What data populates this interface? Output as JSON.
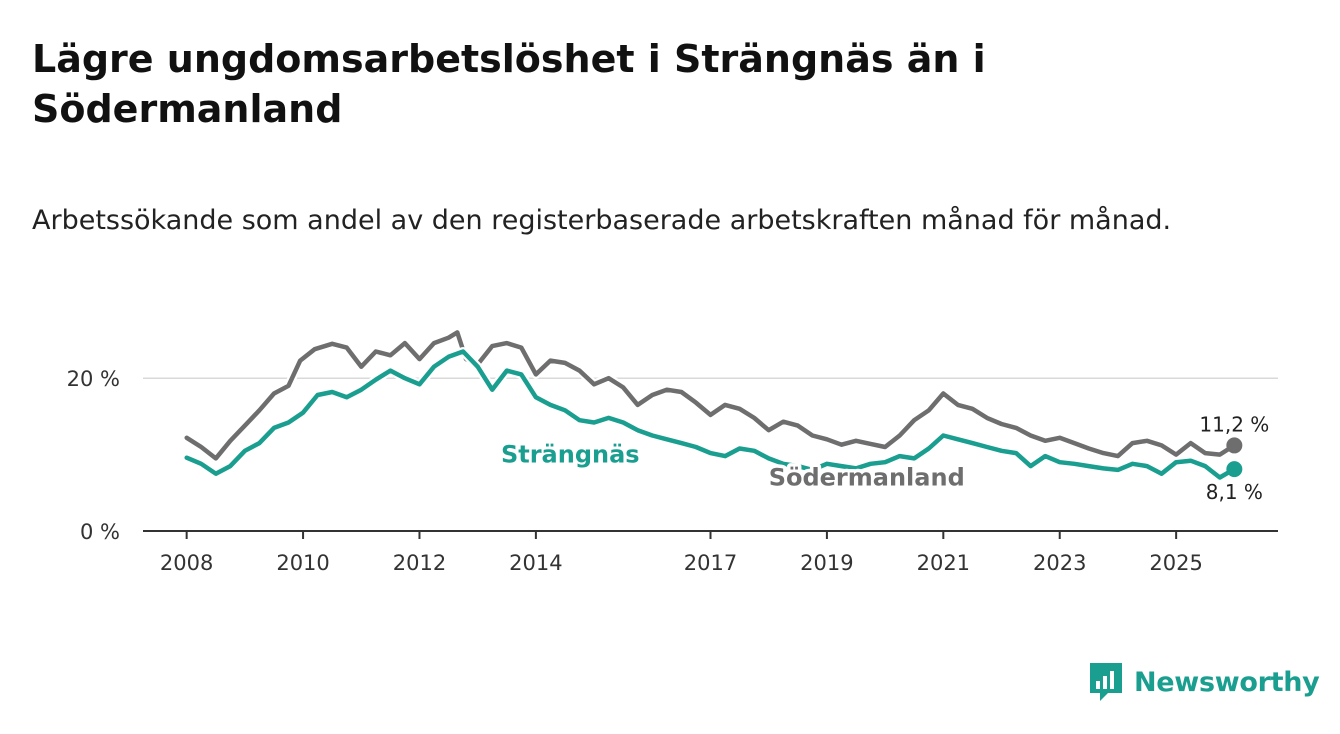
{
  "title": "Lägre ungdomsarbetslöshet i Strängnäs än i Södermanland",
  "subtitle": "Arbetssökande som andel av den registerbaserade arbetskraften månad för månad.",
  "brand": {
    "name": "Newsworthy",
    "icon": "newsworthy-logo-icon",
    "color": "#1a9e8f"
  },
  "chart_data": {
    "type": "line",
    "title": "Lägre ungdomsarbetslöshet i Strängnäs än i Södermanland",
    "xlabel": "",
    "ylabel": "",
    "x_range": [
      2007.25,
      2026.75
    ],
    "ylim": [
      0,
      25
    ],
    "y_ticks": [
      0,
      20
    ],
    "y_tick_labels": [
      "0 %",
      "20 %"
    ],
    "x_ticks": [
      2008,
      2010,
      2012,
      2014,
      2017,
      2019,
      2021,
      2023,
      2025
    ],
    "x_tick_labels": [
      "2008",
      "2010",
      "2012",
      "2014",
      "2017",
      "2019",
      "2021",
      "2023",
      "2025"
    ],
    "grid": "horizontal",
    "series": [
      {
        "name": "Södermanland",
        "color": "#6e6e6e",
        "end_label": "11,2 %",
        "points": [
          [
            2008.0,
            12.2
          ],
          [
            2008.25,
            11.0
          ],
          [
            2008.5,
            9.5
          ],
          [
            2008.75,
            11.8
          ],
          [
            2009.0,
            13.8
          ],
          [
            2009.25,
            15.8
          ],
          [
            2009.5,
            18.0
          ],
          [
            2009.75,
            19.0
          ],
          [
            2009.95,
            22.3
          ],
          [
            2010.2,
            23.8
          ],
          [
            2010.5,
            24.5
          ],
          [
            2010.75,
            24.0
          ],
          [
            2011.0,
            21.5
          ],
          [
            2011.25,
            23.5
          ],
          [
            2011.5,
            23.0
          ],
          [
            2011.75,
            24.6
          ],
          [
            2012.0,
            22.5
          ],
          [
            2012.25,
            24.6
          ],
          [
            2012.5,
            25.3
          ],
          [
            2012.65,
            26.0
          ],
          [
            2012.8,
            22.5
          ],
          [
            2013.0,
            21.8
          ],
          [
            2013.25,
            24.2
          ],
          [
            2013.5,
            24.6
          ],
          [
            2013.75,
            24.0
          ],
          [
            2014.0,
            20.5
          ],
          [
            2014.25,
            22.3
          ],
          [
            2014.5,
            22.0
          ],
          [
            2014.75,
            21.0
          ],
          [
            2015.0,
            19.2
          ],
          [
            2015.25,
            20.0
          ],
          [
            2015.5,
            18.8
          ],
          [
            2015.75,
            16.5
          ],
          [
            2016.0,
            17.8
          ],
          [
            2016.25,
            18.5
          ],
          [
            2016.5,
            18.2
          ],
          [
            2016.75,
            16.8
          ],
          [
            2017.0,
            15.2
          ],
          [
            2017.25,
            16.5
          ],
          [
            2017.5,
            16.0
          ],
          [
            2017.75,
            14.8
          ],
          [
            2018.0,
            13.2
          ],
          [
            2018.25,
            14.3
          ],
          [
            2018.5,
            13.8
          ],
          [
            2018.75,
            12.5
          ],
          [
            2019.0,
            12.0
          ],
          [
            2019.25,
            11.3
          ],
          [
            2019.5,
            11.8
          ],
          [
            2019.75,
            11.4
          ],
          [
            2020.0,
            11.0
          ],
          [
            2020.25,
            12.5
          ],
          [
            2020.5,
            14.5
          ],
          [
            2020.75,
            15.8
          ],
          [
            2021.0,
            18.0
          ],
          [
            2021.25,
            16.5
          ],
          [
            2021.5,
            16.0
          ],
          [
            2021.75,
            14.8
          ],
          [
            2022.0,
            14.0
          ],
          [
            2022.25,
            13.5
          ],
          [
            2022.5,
            12.5
          ],
          [
            2022.75,
            11.8
          ],
          [
            2023.0,
            12.2
          ],
          [
            2023.25,
            11.5
          ],
          [
            2023.5,
            10.8
          ],
          [
            2023.75,
            10.2
          ],
          [
            2024.0,
            9.8
          ],
          [
            2024.25,
            11.5
          ],
          [
            2024.5,
            11.8
          ],
          [
            2024.75,
            11.2
          ],
          [
            2025.0,
            10.0
          ],
          [
            2025.25,
            11.5
          ],
          [
            2025.5,
            10.2
          ],
          [
            2025.75,
            10.0
          ],
          [
            2026.0,
            11.2
          ]
        ]
      },
      {
        "name": "Strängnäs",
        "color": "#1a9e8f",
        "end_label": "8,1 %",
        "points": [
          [
            2008.0,
            9.6
          ],
          [
            2008.25,
            8.8
          ],
          [
            2008.5,
            7.5
          ],
          [
            2008.75,
            8.5
          ],
          [
            2009.0,
            10.5
          ],
          [
            2009.25,
            11.5
          ],
          [
            2009.5,
            13.5
          ],
          [
            2009.75,
            14.2
          ],
          [
            2010.0,
            15.5
          ],
          [
            2010.25,
            17.8
          ],
          [
            2010.5,
            18.2
          ],
          [
            2010.75,
            17.5
          ],
          [
            2011.0,
            18.5
          ],
          [
            2011.25,
            19.8
          ],
          [
            2011.5,
            21.0
          ],
          [
            2011.75,
            20.0
          ],
          [
            2012.0,
            19.2
          ],
          [
            2012.25,
            21.5
          ],
          [
            2012.5,
            22.8
          ],
          [
            2012.75,
            23.5
          ],
          [
            2013.0,
            21.5
          ],
          [
            2013.25,
            18.5
          ],
          [
            2013.5,
            21.0
          ],
          [
            2013.75,
            20.5
          ],
          [
            2014.0,
            17.5
          ],
          [
            2014.25,
            16.5
          ],
          [
            2014.5,
            15.8
          ],
          [
            2014.75,
            14.5
          ],
          [
            2015.0,
            14.2
          ],
          [
            2015.25,
            14.8
          ],
          [
            2015.5,
            14.2
          ],
          [
            2015.75,
            13.2
          ],
          [
            2016.0,
            12.5
          ],
          [
            2016.25,
            12.0
          ],
          [
            2016.5,
            11.5
          ],
          [
            2016.75,
            11.0
          ],
          [
            2017.0,
            10.2
          ],
          [
            2017.25,
            9.8
          ],
          [
            2017.5,
            10.8
          ],
          [
            2017.75,
            10.5
          ],
          [
            2018.0,
            9.5
          ],
          [
            2018.25,
            8.8
          ],
          [
            2018.5,
            8.5
          ],
          [
            2018.75,
            8.0
          ],
          [
            2019.0,
            8.8
          ],
          [
            2019.25,
            8.5
          ],
          [
            2019.5,
            8.2
          ],
          [
            2019.75,
            8.8
          ],
          [
            2020.0,
            9.0
          ],
          [
            2020.25,
            9.8
          ],
          [
            2020.5,
            9.5
          ],
          [
            2020.75,
            10.8
          ],
          [
            2021.0,
            12.5
          ],
          [
            2021.25,
            12.0
          ],
          [
            2021.5,
            11.5
          ],
          [
            2021.75,
            11.0
          ],
          [
            2022.0,
            10.5
          ],
          [
            2022.25,
            10.2
          ],
          [
            2022.5,
            8.5
          ],
          [
            2022.75,
            9.8
          ],
          [
            2023.0,
            9.0
          ],
          [
            2023.25,
            8.8
          ],
          [
            2023.5,
            8.5
          ],
          [
            2023.75,
            8.2
          ],
          [
            2024.0,
            8.0
          ],
          [
            2024.25,
            8.8
          ],
          [
            2024.5,
            8.5
          ],
          [
            2024.75,
            7.5
          ],
          [
            2025.0,
            9.0
          ],
          [
            2025.25,
            9.2
          ],
          [
            2025.5,
            8.5
          ],
          [
            2025.75,
            7.0
          ],
          [
            2026.0,
            8.1
          ]
        ]
      }
    ]
  }
}
